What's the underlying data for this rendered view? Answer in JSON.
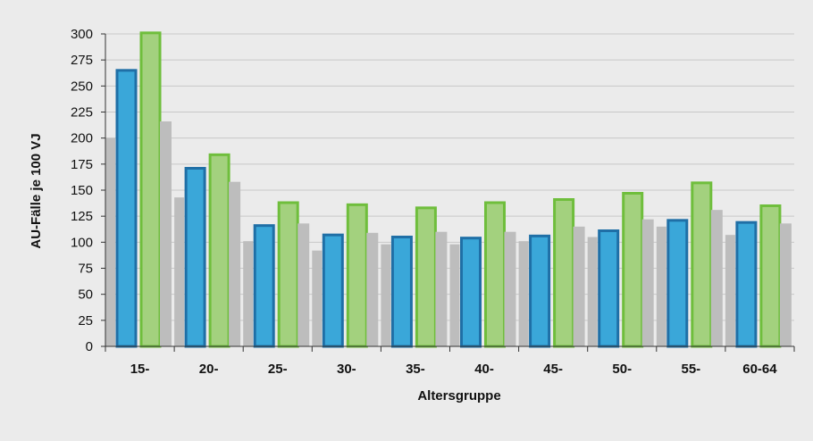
{
  "chart_data": {
    "type": "bar",
    "title": "",
    "xlabel": "Altersgruppe",
    "ylabel": "AU-Fälle je 100 VJ",
    "ylim": [
      0,
      300
    ],
    "yticks": [
      0,
      25,
      50,
      75,
      100,
      125,
      150,
      175,
      200,
      225,
      250,
      275,
      300
    ],
    "grid": true,
    "legend": "none",
    "categories": [
      "15-",
      "20-",
      "25-",
      "30-",
      "35-",
      "40-",
      "45-",
      "50-",
      "55-",
      "60-64"
    ],
    "series": [
      {
        "color": "#bdbdbd",
        "values": [
          200,
          143,
          101,
          92,
          98,
          98,
          101,
          105,
          115,
          107
        ]
      },
      {
        "color": "#3aa7d9",
        "values": [
          265,
          171,
          116,
          107,
          105,
          104,
          106,
          111,
          121,
          119
        ]
      },
      {
        "color": "#a3d17e",
        "values": [
          301,
          184,
          138,
          136,
          133,
          138,
          141,
          147,
          157,
          135
        ]
      },
      {
        "color": "#bdbdbd",
        "values": [
          216,
          158,
          118,
          109,
          110,
          110,
          115,
          122,
          131,
          118
        ]
      }
    ],
    "colors": {
      "background": "#ebebeb",
      "grid": "#c8c8c8",
      "blue_stroke": "#1f6fa6",
      "green_stroke": "#6fbe3c"
    }
  }
}
